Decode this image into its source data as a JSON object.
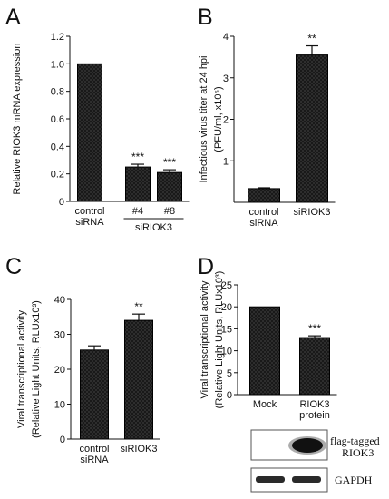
{
  "chart_data": [
    {
      "panel": "A",
      "type": "bar",
      "categories": [
        "control siRNA",
        "#4",
        "#8"
      ],
      "values": [
        1.0,
        0.25,
        0.21
      ],
      "errors": [
        0,
        0.02,
        0.02
      ],
      "significance": [
        "",
        "***",
        "***"
      ],
      "ylabel": "Relative RIOK3 mRNA expression",
      "ylim": [
        0,
        1.2
      ],
      "yticks": [
        "0",
        "0.2",
        "0.4",
        "0.6",
        "0.8",
        "1.0",
        "1.2"
      ],
      "xlabels": [
        [
          "control",
          "siRNA"
        ],
        [
          "#4"
        ],
        [
          "#8"
        ]
      ],
      "group_label": "siRIOK3"
    },
    {
      "panel": "B",
      "type": "bar",
      "categories": [
        "control siRNA",
        "siRIOK3"
      ],
      "values": [
        0.33,
        3.55
      ],
      "errors": [
        0.02,
        0.22
      ],
      "significance": [
        "",
        "**"
      ],
      "ylabel": [
        "Infectious virus titer at 24 hpi",
        "(PFU/ml, x10⁵)"
      ],
      "ylim": [
        0,
        4
      ],
      "yticks": [
        "1",
        "2",
        "3",
        "4"
      ],
      "xlabels": [
        [
          "control",
          "siRNA"
        ],
        [
          "siRIOK3"
        ]
      ]
    },
    {
      "panel": "C",
      "type": "bar",
      "categories": [
        "control siRNA",
        "siRIOK3"
      ],
      "values": [
        25.5,
        34.0
      ],
      "errors": [
        1.2,
        1.8
      ],
      "significance": [
        "",
        "**"
      ],
      "ylabel": [
        "Viral transcriptional activity",
        "(Relative Light Units, RLUx10³)"
      ],
      "ylim": [
        0,
        40
      ],
      "yticks": [
        "0",
        "10",
        "20",
        "30",
        "40"
      ],
      "xlabels": [
        [
          "control",
          "siRNA"
        ],
        [
          "siRIOK3"
        ]
      ]
    },
    {
      "panel": "D",
      "type": "bar",
      "categories": [
        "Mock",
        "RIOK3 protein"
      ],
      "values": [
        20.0,
        13.0
      ],
      "errors": [
        0,
        0.4
      ],
      "significance": [
        "",
        "***"
      ],
      "ylabel": [
        "Viral transcriptional activity",
        "(Relative Light Units, RLUx10³)"
      ],
      "ylim": [
        0,
        25
      ],
      "yticks": [
        "0",
        "5",
        "10",
        "15",
        "20",
        "25"
      ],
      "xlabels": [
        [
          "Mock"
        ],
        [
          "RIOK3",
          "protein"
        ]
      ]
    }
  ],
  "blots": {
    "flag_label": [
      "flag-tagged",
      "RIOK3"
    ],
    "gapdh_label": "GAPDH"
  },
  "colors": {
    "bar_fill": "#161616",
    "bar_stroke": "#000000",
    "axis": "#111111",
    "hatch": "#3a3a3a"
  }
}
